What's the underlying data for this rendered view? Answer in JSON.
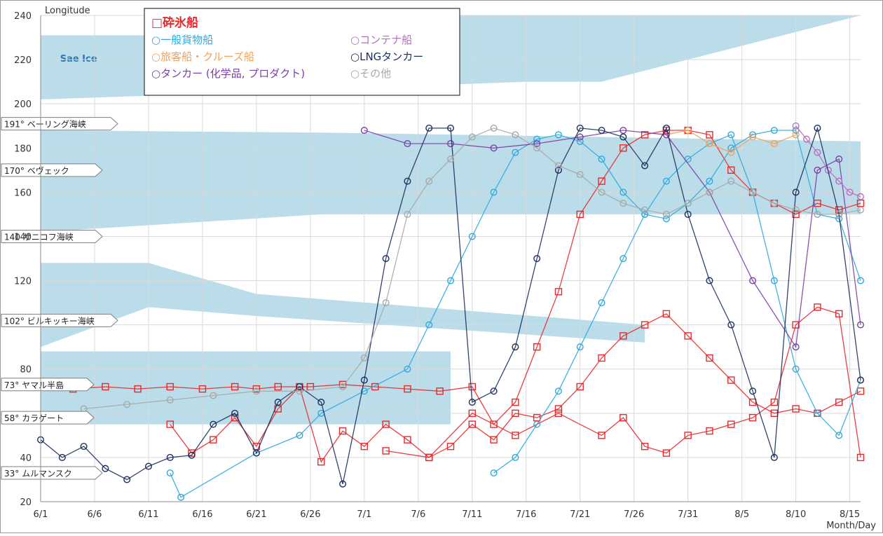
{
  "chart_data": {
    "type": "line",
    "xlabel": "Month/Day",
    "ylabel": "Longitude",
    "x_ticks": [
      "6/1",
      "6/6",
      "6/11",
      "6/16",
      "6/21",
      "6/26",
      "7/1",
      "7/6",
      "7/11",
      "7/16",
      "7/21",
      "7/26",
      "7/31",
      "8/5",
      "8/10",
      "8/15"
    ],
    "x_range_days": [
      0,
      76
    ],
    "y_ticks": [
      20,
      40,
      60,
      80,
      100,
      120,
      140,
      160,
      180,
      200,
      220,
      240
    ],
    "y_tick_labels": [
      "20",
      "40",
      "",
      "80",
      "",
      "120",
      "140",
      "160",
      "180",
      "200",
      "220",
      "240"
    ],
    "ylim": [
      20,
      240
    ],
    "grid": true,
    "legend_position": "top-left",
    "sea_ice_label": "Sae Ice",
    "sea_ice_color": "#a9d4e4",
    "sea_ice_bands": [
      {
        "x": [
          0,
          18,
          18,
          45,
          52,
          76,
          76,
          52,
          45,
          18,
          0
        ],
        "y": [
          231,
          231,
          240,
          240,
          240,
          240,
          240,
          210,
          210,
          205,
          202
        ]
      },
      {
        "x": [
          0,
          26,
          52,
          76,
          76,
          52,
          26,
          0
        ],
        "y": [
          188,
          187,
          185,
          183,
          150,
          150,
          150,
          142
        ]
      },
      {
        "x": [
          0,
          10,
          20,
          56,
          56,
          20,
          10,
          0
        ],
        "y": [
          128,
          128,
          114,
          100,
          92,
          104,
          108,
          90
        ]
      },
      {
        "x": [
          0,
          38,
          38,
          0
        ],
        "y": [
          88,
          88,
          55,
          55
        ]
      }
    ],
    "reference_lines": [
      {
        "label": "191° ベーリング海峡",
        "y": 191
      },
      {
        "label": "170° ベヴェック",
        "y": 170
      },
      {
        "label": "140 サニコフ海峡",
        "y": 140
      },
      {
        "label": "102° ビルキッキー海峡",
        "y": 102
      },
      {
        "label": "73° ヤマル半島",
        "y": 73
      },
      {
        "label": "58° カラゲート",
        "y": 58
      },
      {
        "label": "33° ムルマンスク",
        "y": 33
      }
    ],
    "legend": [
      {
        "label": "□砕氷船",
        "color": "#e8282b"
      },
      {
        "label": "○一般貨物船",
        "color": "#2fa9dd"
      },
      {
        "label": "○旅客船・クルーズ船",
        "color": "#f4a05a"
      },
      {
        "label": "○タンカー (化学品, プロダクト)",
        "color": "#7b3fa6"
      },
      {
        "label": "○コンテナ船",
        "color": "#b86dc2"
      },
      {
        "label": "○LNGタンカー",
        "color": "#1c2f5e"
      },
      {
        "label": "○その他",
        "color": "#a8a8a8"
      }
    ],
    "series": [
      {
        "name": "□砕氷船",
        "color": "#e8282b",
        "marker": "square",
        "x": [
          0,
          3,
          6,
          9,
          12,
          15,
          18,
          20,
          22,
          25,
          28,
          31,
          34,
          37,
          40,
          42,
          44,
          46,
          48,
          50,
          52,
          54,
          56,
          58,
          60,
          62,
          64,
          66,
          68,
          70,
          72,
          74,
          76
        ],
        "y": [
          72,
          71,
          72,
          71,
          72,
          71,
          72,
          71,
          72,
          72,
          73,
          72,
          71,
          70,
          72,
          55,
          65,
          90,
          115,
          150,
          165,
          180,
          186,
          188,
          188,
          186,
          170,
          160,
          155,
          150,
          155,
          152,
          155
        ]
      },
      {
        "name": "□砕氷船",
        "color": "#e8282b",
        "marker": "square",
        "x": [
          12,
          14,
          16,
          18,
          20,
          22,
          24,
          26,
          28,
          30,
          32,
          34,
          36,
          38,
          40,
          42,
          44,
          46,
          48,
          50,
          52,
          54,
          56,
          58,
          60,
          62,
          64,
          66,
          68,
          70,
          72,
          74,
          76
        ],
        "y": [
          55,
          42,
          48,
          58,
          45,
          62,
          72,
          38,
          52,
          45,
          55,
          48,
          40,
          45,
          55,
          48,
          60,
          58,
          62,
          72,
          85,
          95,
          100,
          105,
          95,
          85,
          75,
          65,
          60,
          62,
          60,
          65,
          70
        ]
      },
      {
        "name": "□砕氷船",
        "color": "#e8282b",
        "marker": "square",
        "x": [
          32,
          36,
          40,
          44,
          48,
          52,
          54,
          56,
          58,
          60,
          62,
          64,
          66,
          68,
          70,
          72,
          74,
          76
        ],
        "y": [
          43,
          40,
          60,
          50,
          60,
          50,
          58,
          45,
          42,
          50,
          52,
          55,
          58,
          65,
          100,
          108,
          105,
          40
        ]
      },
      {
        "name": "○一般貨物船",
        "color": "#2fa9dd",
        "marker": "circle",
        "x": [
          12,
          13,
          20,
          24,
          26,
          30,
          34,
          36,
          38,
          40,
          42,
          44,
          46,
          48,
          50,
          52,
          54,
          56,
          58,
          60,
          62,
          64,
          66,
          68,
          70,
          72,
          74,
          76
        ],
        "y": [
          33,
          22,
          42,
          50,
          60,
          70,
          80,
          100,
          120,
          140,
          160,
          178,
          184,
          186,
          183,
          175,
          160,
          150,
          148,
          155,
          165,
          180,
          186,
          188,
          188,
          150,
          148,
          120
        ]
      },
      {
        "name": "○一般貨物船",
        "color": "#2fa9dd",
        "marker": "circle",
        "x": [
          42,
          44,
          46,
          48,
          50,
          52,
          54,
          56,
          58,
          60,
          62,
          64,
          66,
          68,
          70,
          72,
          74,
          76
        ],
        "y": [
          33,
          40,
          55,
          70,
          90,
          110,
          130,
          150,
          165,
          175,
          182,
          186,
          160,
          120,
          80,
          60,
          50,
          75
        ]
      },
      {
        "name": "○旅客船・クルーズ船",
        "color": "#f4a05a",
        "marker": "circle",
        "x": [
          58,
          60,
          62,
          64,
          66,
          68,
          70
        ],
        "y": [
          186,
          188,
          182,
          178,
          185,
          182,
          186
        ]
      },
      {
        "name": "○タンカー (化学品, プロダクト)",
        "color": "#7b3fa6",
        "marker": "circle",
        "x": [
          30,
          34,
          38,
          42,
          46,
          50,
          54,
          58,
          62,
          66,
          70,
          72,
          74,
          76
        ],
        "y": [
          188,
          182,
          182,
          180,
          182,
          185,
          188,
          186,
          160,
          120,
          90,
          170,
          175,
          100
        ]
      },
      {
        "name": "○コンテナ船",
        "color": "#b86dc2",
        "marker": "circle",
        "x": [
          70,
          71,
          72,
          73,
          74,
          75,
          76
        ],
        "y": [
          190,
          184,
          178,
          170,
          165,
          160,
          158
        ]
      },
      {
        "name": "○LNGタンカー",
        "color": "#1c2f5e",
        "marker": "circle",
        "x": [
          0,
          2,
          4,
          6,
          8,
          10,
          12,
          14,
          16,
          18,
          20,
          22,
          24,
          26,
          28,
          30,
          32,
          34,
          36,
          38,
          40,
          42,
          44,
          46,
          48,
          50,
          52,
          54,
          56,
          58,
          60,
          62,
          64,
          66,
          68,
          70,
          72,
          74,
          76
        ],
        "y": [
          48,
          40,
          45,
          35,
          30,
          36,
          40,
          41,
          55,
          60,
          42,
          65,
          72,
          65,
          28,
          75,
          130,
          165,
          189,
          189,
          65,
          70,
          90,
          130,
          170,
          189,
          188,
          185,
          172,
          189,
          150,
          120,
          100,
          70,
          40,
          160,
          189,
          150,
          75
        ]
      },
      {
        "name": "○その他",
        "color": "#a8a8a8",
        "marker": "circle",
        "x": [
          4,
          8,
          12,
          16,
          20,
          24,
          28,
          30,
          32,
          34,
          36,
          38,
          40,
          42,
          44,
          46,
          48,
          50,
          52,
          54,
          56,
          58,
          60,
          62,
          64,
          66,
          68,
          70,
          72,
          74,
          76
        ],
        "y": [
          62,
          64,
          66,
          68,
          70,
          70,
          72,
          85,
          110,
          150,
          165,
          175,
          185,
          189,
          186,
          180,
          172,
          168,
          160,
          155,
          152,
          150,
          155,
          160,
          165,
          160,
          155,
          152,
          150,
          150,
          152
        ]
      }
    ]
  }
}
